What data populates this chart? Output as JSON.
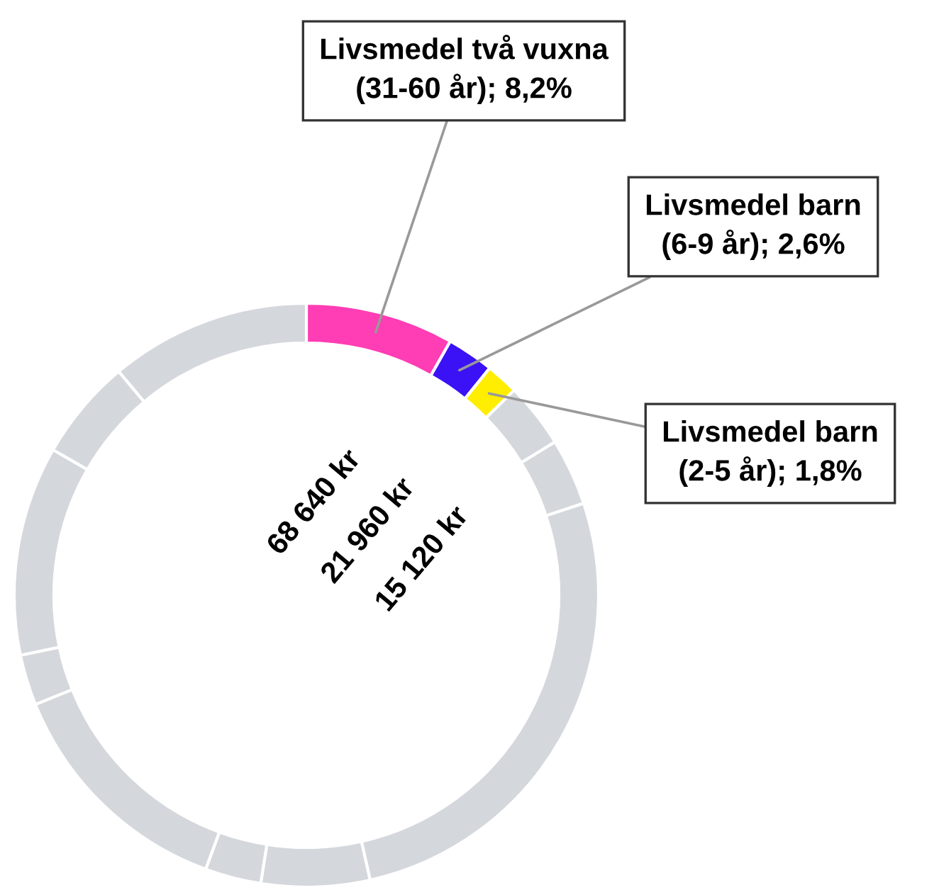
{
  "chart_data": {
    "type": "donut",
    "categories": [
      "Livsmedel två vuxna\n(31-60 år)",
      "Livsmedel barn\n(6-9 år)",
      "Livsmedel barn\n(2-5 år)",
      null,
      null,
      null,
      null,
      null,
      null,
      null,
      null,
      null,
      null
    ],
    "values": [
      8.2,
      2.6,
      1.8,
      3.6,
      3.7,
      26.6,
      6.0,
      3.1,
      13.3,
      2.8,
      11.6,
      5.6,
      11.1
    ],
    "colors": [
      "#ff3db4",
      "#3b12f5",
      "#ffee00",
      "#d4d7dc",
      "#d4d7dc",
      "#d4d7dc",
      "#d4d7dc",
      "#d4d7dc",
      "#d4d7dc",
      "#d4d7dc",
      "#d4d7dc",
      "#d4d7dc",
      "#d4d7dc"
    ],
    "value_labels": [
      "8,2%",
      "2,6%",
      "1,8%",
      null,
      null,
      null,
      null,
      null,
      null,
      null,
      null,
      null,
      null
    ],
    "annotations": [
      "68 640 kr",
      "21 960 kr",
      "15 120 kr"
    ]
  }
}
